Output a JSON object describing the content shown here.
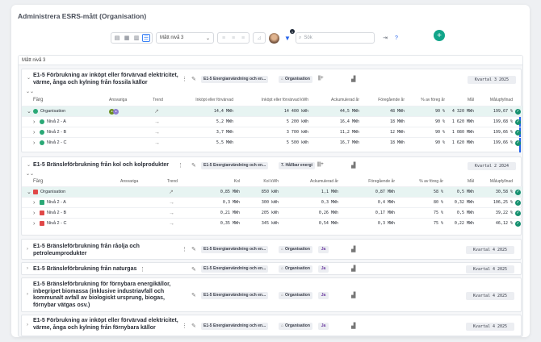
{
  "page": {
    "title": "Administrera ESRS-mått (Organisation)"
  },
  "toolbar": {
    "view_select": "Mått nivå 3",
    "search_placeholder": "Sök",
    "filter_count": "1",
    "add_label": "+"
  },
  "level_label": "Mått nivå 3",
  "columns_card1": [
    "Färg",
    "Ansvariga",
    "Trend",
    "Inköpt eller förvärvad",
    "Inköpt eller förvärvad kWh",
    "Ackumulerad år",
    "Föregående år",
    "% av föreg år",
    "Mål",
    "Målupfyllnad"
  ],
  "columns_card2": [
    "Färg",
    "Ansvariga",
    "Trend",
    "Kol",
    "Kol kWh",
    "Ackumulerad år",
    "Föregående år",
    "% av föreg år",
    "Mål",
    "Målupfyllnad"
  ],
  "cards": [
    {
      "title": "E1-5 Förbrukning av inköpt eller förvärvad elektricitet, värme, ånga och kylning från fossila källor",
      "tag_metric": "E1-5 Energianvändning och en...",
      "tag_scope": "Organisation",
      "period": "Kvartal 3 2025",
      "rows": [
        {
          "name": "Organisation",
          "val": "14,4 MWh",
          "kwh": "14 400 kWh",
          "acc": "44,5 MWh",
          "prev": "48 MWh",
          "pct": "90 %",
          "goal": "4 320 MWh",
          "ful": "199,67 %"
        },
        {
          "name": "Nivå 2 - A",
          "val": "5,2 MWh",
          "kwh": "5 200 kWh",
          "acc": "16,4 MWh",
          "prev": "18 MWh",
          "pct": "90 %",
          "goal": "1 620 MWh",
          "ful": "199,68 %"
        },
        {
          "name": "Nivå 2 - B",
          "val": "3,7 MWh",
          "kwh": "3 700 kWh",
          "acc": "11,2 MWh",
          "prev": "12 MWh",
          "pct": "90 %",
          "goal": "1 080 MWh",
          "ful": "199,66 %"
        },
        {
          "name": "Nivå 2 - C",
          "val": "5,5 MWh",
          "kwh": "5 500 kWh",
          "acc": "16,7 MWh",
          "prev": "18 MWh",
          "pct": "90 %",
          "goal": "1 620 MWh",
          "ful": "199,66 %"
        }
      ]
    },
    {
      "title": "E1-5 Bränsleförbrukning från kol och kolprodukter",
      "tag_metric": "E1-5 Energianvändning och en...",
      "tag_scope": "7. Hållbar energi",
      "period": "Kvartal 2 2024",
      "rows": [
        {
          "name": "Organisation",
          "val": "0,85 MWh",
          "kwh": "850 kWh",
          "acc": "1,1 MWh",
          "prev": "0,87 MWh",
          "pct": "58 %",
          "goal": "0,5 MWh",
          "ful": "30,58 %"
        },
        {
          "name": "Nivå 2 - A",
          "val": "0,3 MWh",
          "kwh": "300 kWh",
          "acc": "0,3 MWh",
          "prev": "0,4 MWh",
          "pct": "80 %",
          "goal": "0,32 MWh",
          "ful": "106,25 %"
        },
        {
          "name": "Nivå 2 - B",
          "val": "0,21 MWh",
          "kwh": "205 kWh",
          "acc": "0,26 MWh",
          "prev": "0,17 MWh",
          "pct": "75 %",
          "goal": "0,5 MWh",
          "ful": "39,22 %"
        },
        {
          "name": "Nivå 2 - C",
          "val": "0,35 MWh",
          "kwh": "345 kWh",
          "acc": "0,54 MWh",
          "prev": "0,3 MWh",
          "pct": "75 %",
          "goal": "0,22 MWh",
          "ful": "46,12 %"
        }
      ]
    },
    {
      "title": "E1-5 Bränsleförbrukning från råolja och petroleumprodukter",
      "tag_metric": "E1-5 Energianvändning och en...",
      "tag_scope": "Organisation",
      "tag_ja": "Ja",
      "period": "Kvartal 4 2025"
    },
    {
      "title": "E1-5 Bränsleförbrukning från naturgas",
      "tag_metric": "E1-5 Energianvändning och en...",
      "tag_scope": "Organisation",
      "tag_ja": "Ja",
      "period": "Kvartal 4 2025"
    },
    {
      "title": "E1-5 Bränsleförbrukning för förnybara energikällor, inbegripet biomassa (inklusive industriavfall och kommunalt avfall av biologiskt ursprung, biogas, förnybar vätgas osv.)",
      "tag_metric": "E1-5 Energianvändning och en...",
      "tag_scope": "Organisation",
      "tag_ja": "Ja",
      "period": "Kvartal 4 2025"
    },
    {
      "title": "E1-5 Förbrukning av inköpt eller förvärvad elektricitet, värme, ånga och kylning från förnybara källor",
      "tag_metric": "E1-5 Energianvändning och en...",
      "tag_scope": "Organisation",
      "tag_ja": "Ja",
      "period": "Kvartal 4 2025"
    }
  ],
  "colors": {
    "accent": "#12a58a",
    "green": "#2aa876",
    "red": "#e04848",
    "check": "#15906f",
    "blue": "#2563eb"
  }
}
